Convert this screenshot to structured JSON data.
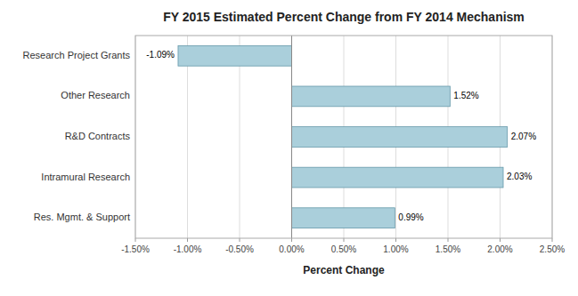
{
  "chart_data": {
    "type": "bar",
    "orientation": "horizontal",
    "title": "FY 2015 Estimated Percent Change from FY 2014 Mechanism",
    "xlabel": "Percent Change",
    "categories": [
      "Research Project Grants",
      "Other Research",
      "R&D Contracts",
      "Intramural Research",
      "Res. Mgmt. & Support"
    ],
    "values": [
      -0.0109,
      0.0152,
      0.0207,
      0.0203,
      0.0099
    ],
    "value_labels": [
      "-1.09%",
      "1.52%",
      "2.07%",
      "2.03%",
      "0.99%"
    ],
    "data_labels": true,
    "color": "#aacfdb",
    "xlim": [
      -0.015,
      0.025
    ],
    "xticks": [
      {
        "value": -0.015,
        "label": "-1.50%"
      },
      {
        "value": -0.01,
        "label": "-1.00%"
      },
      {
        "value": -0.005,
        "label": "-0.50%"
      },
      {
        "value": 0.0,
        "label": "0.00%"
      },
      {
        "value": 0.005,
        "label": "0.50%"
      },
      {
        "value": 0.01,
        "label": "1.00%"
      },
      {
        "value": 0.015,
        "label": "1.50%"
      },
      {
        "value": 0.02,
        "label": "2.00%"
      },
      {
        "value": 0.025,
        "label": "2.50%"
      }
    ],
    "grid": true
  }
}
